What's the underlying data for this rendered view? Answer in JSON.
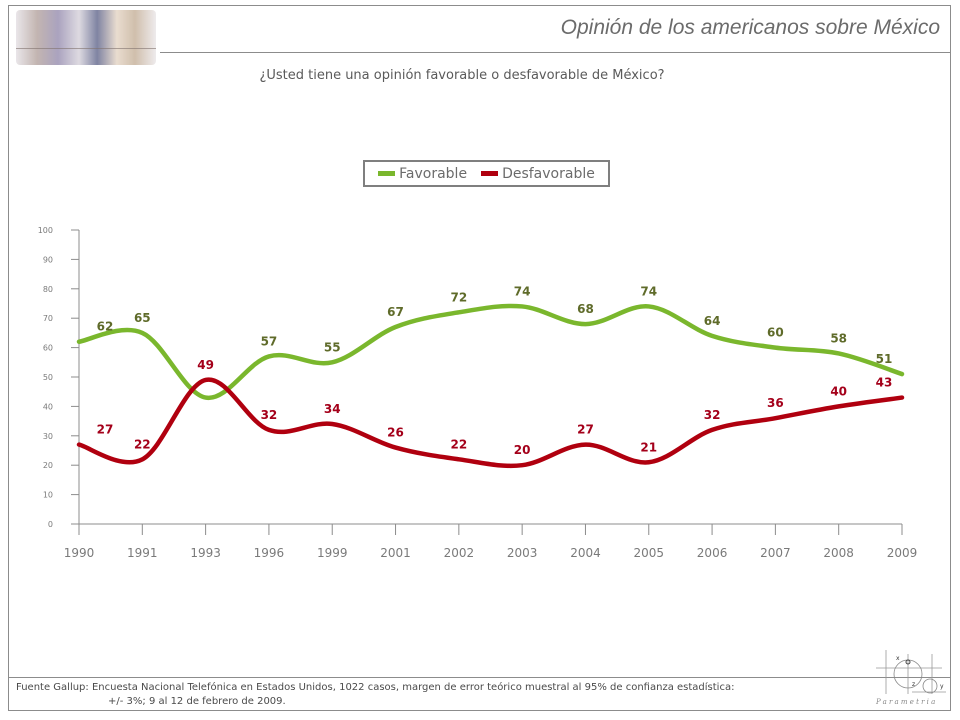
{
  "header": {
    "title": "Opinión de los americanos sobre México",
    "question": "¿Usted tiene una opinión favorable o desfavorable de México?"
  },
  "footer": {
    "line1": "Fuente Gallup: Encuesta Nacional Telefónica en Estados Unidos,  1022 casos, margen de error teórico muestral al 95% de confianza estadística:",
    "line2": "+/- 3%;  9 al 12 de febrero de 2009."
  },
  "logo": {
    "text": "Parametria",
    "x_label": "x",
    "y_label": "y",
    "z_label": "z"
  },
  "colors": {
    "favorable": "#7ab72d",
    "desfavorable": "#b0000f",
    "favorable_label": "#5f6b2a",
    "desfavorable_label": "#a4001a",
    "axis": "#8c8c8c",
    "text": "#6b6b6b"
  },
  "chart_data": {
    "type": "line",
    "title": "¿Usted tiene una opinión favorable o desfavorable de México?",
    "xlabel": "",
    "ylabel": "",
    "ylim": [
      0,
      100
    ],
    "yticks": [
      0,
      10,
      20,
      30,
      40,
      50,
      60,
      70,
      80,
      90,
      100
    ],
    "grid": false,
    "legend_position": "top-center",
    "categories": [
      "1990",
      "1991",
      "1993",
      "1996",
      "1999",
      "2001",
      "2002",
      "2003",
      "2004",
      "2005",
      "2006",
      "2007",
      "2008",
      "2009"
    ],
    "series": [
      {
        "name": "Favorable",
        "values": [
          62,
          65,
          43,
          57,
          55,
          67,
          72,
          74,
          68,
          74,
          64,
          60,
          58,
          51
        ],
        "labels": [
          "62",
          "65",
          "",
          "57",
          "55",
          "67",
          "72",
          "74",
          "68",
          "74",
          "64",
          "60",
          "58",
          "51"
        ]
      },
      {
        "name": "Desfavorable",
        "values": [
          27,
          22,
          49,
          32,
          34,
          26,
          22,
          20,
          27,
          21,
          32,
          36,
          40,
          43
        ],
        "labels": [
          "27",
          "22",
          "49",
          "32",
          "34",
          "26",
          "22",
          "20",
          "27",
          "21",
          "32",
          "36",
          "40",
          "43"
        ]
      }
    ]
  }
}
